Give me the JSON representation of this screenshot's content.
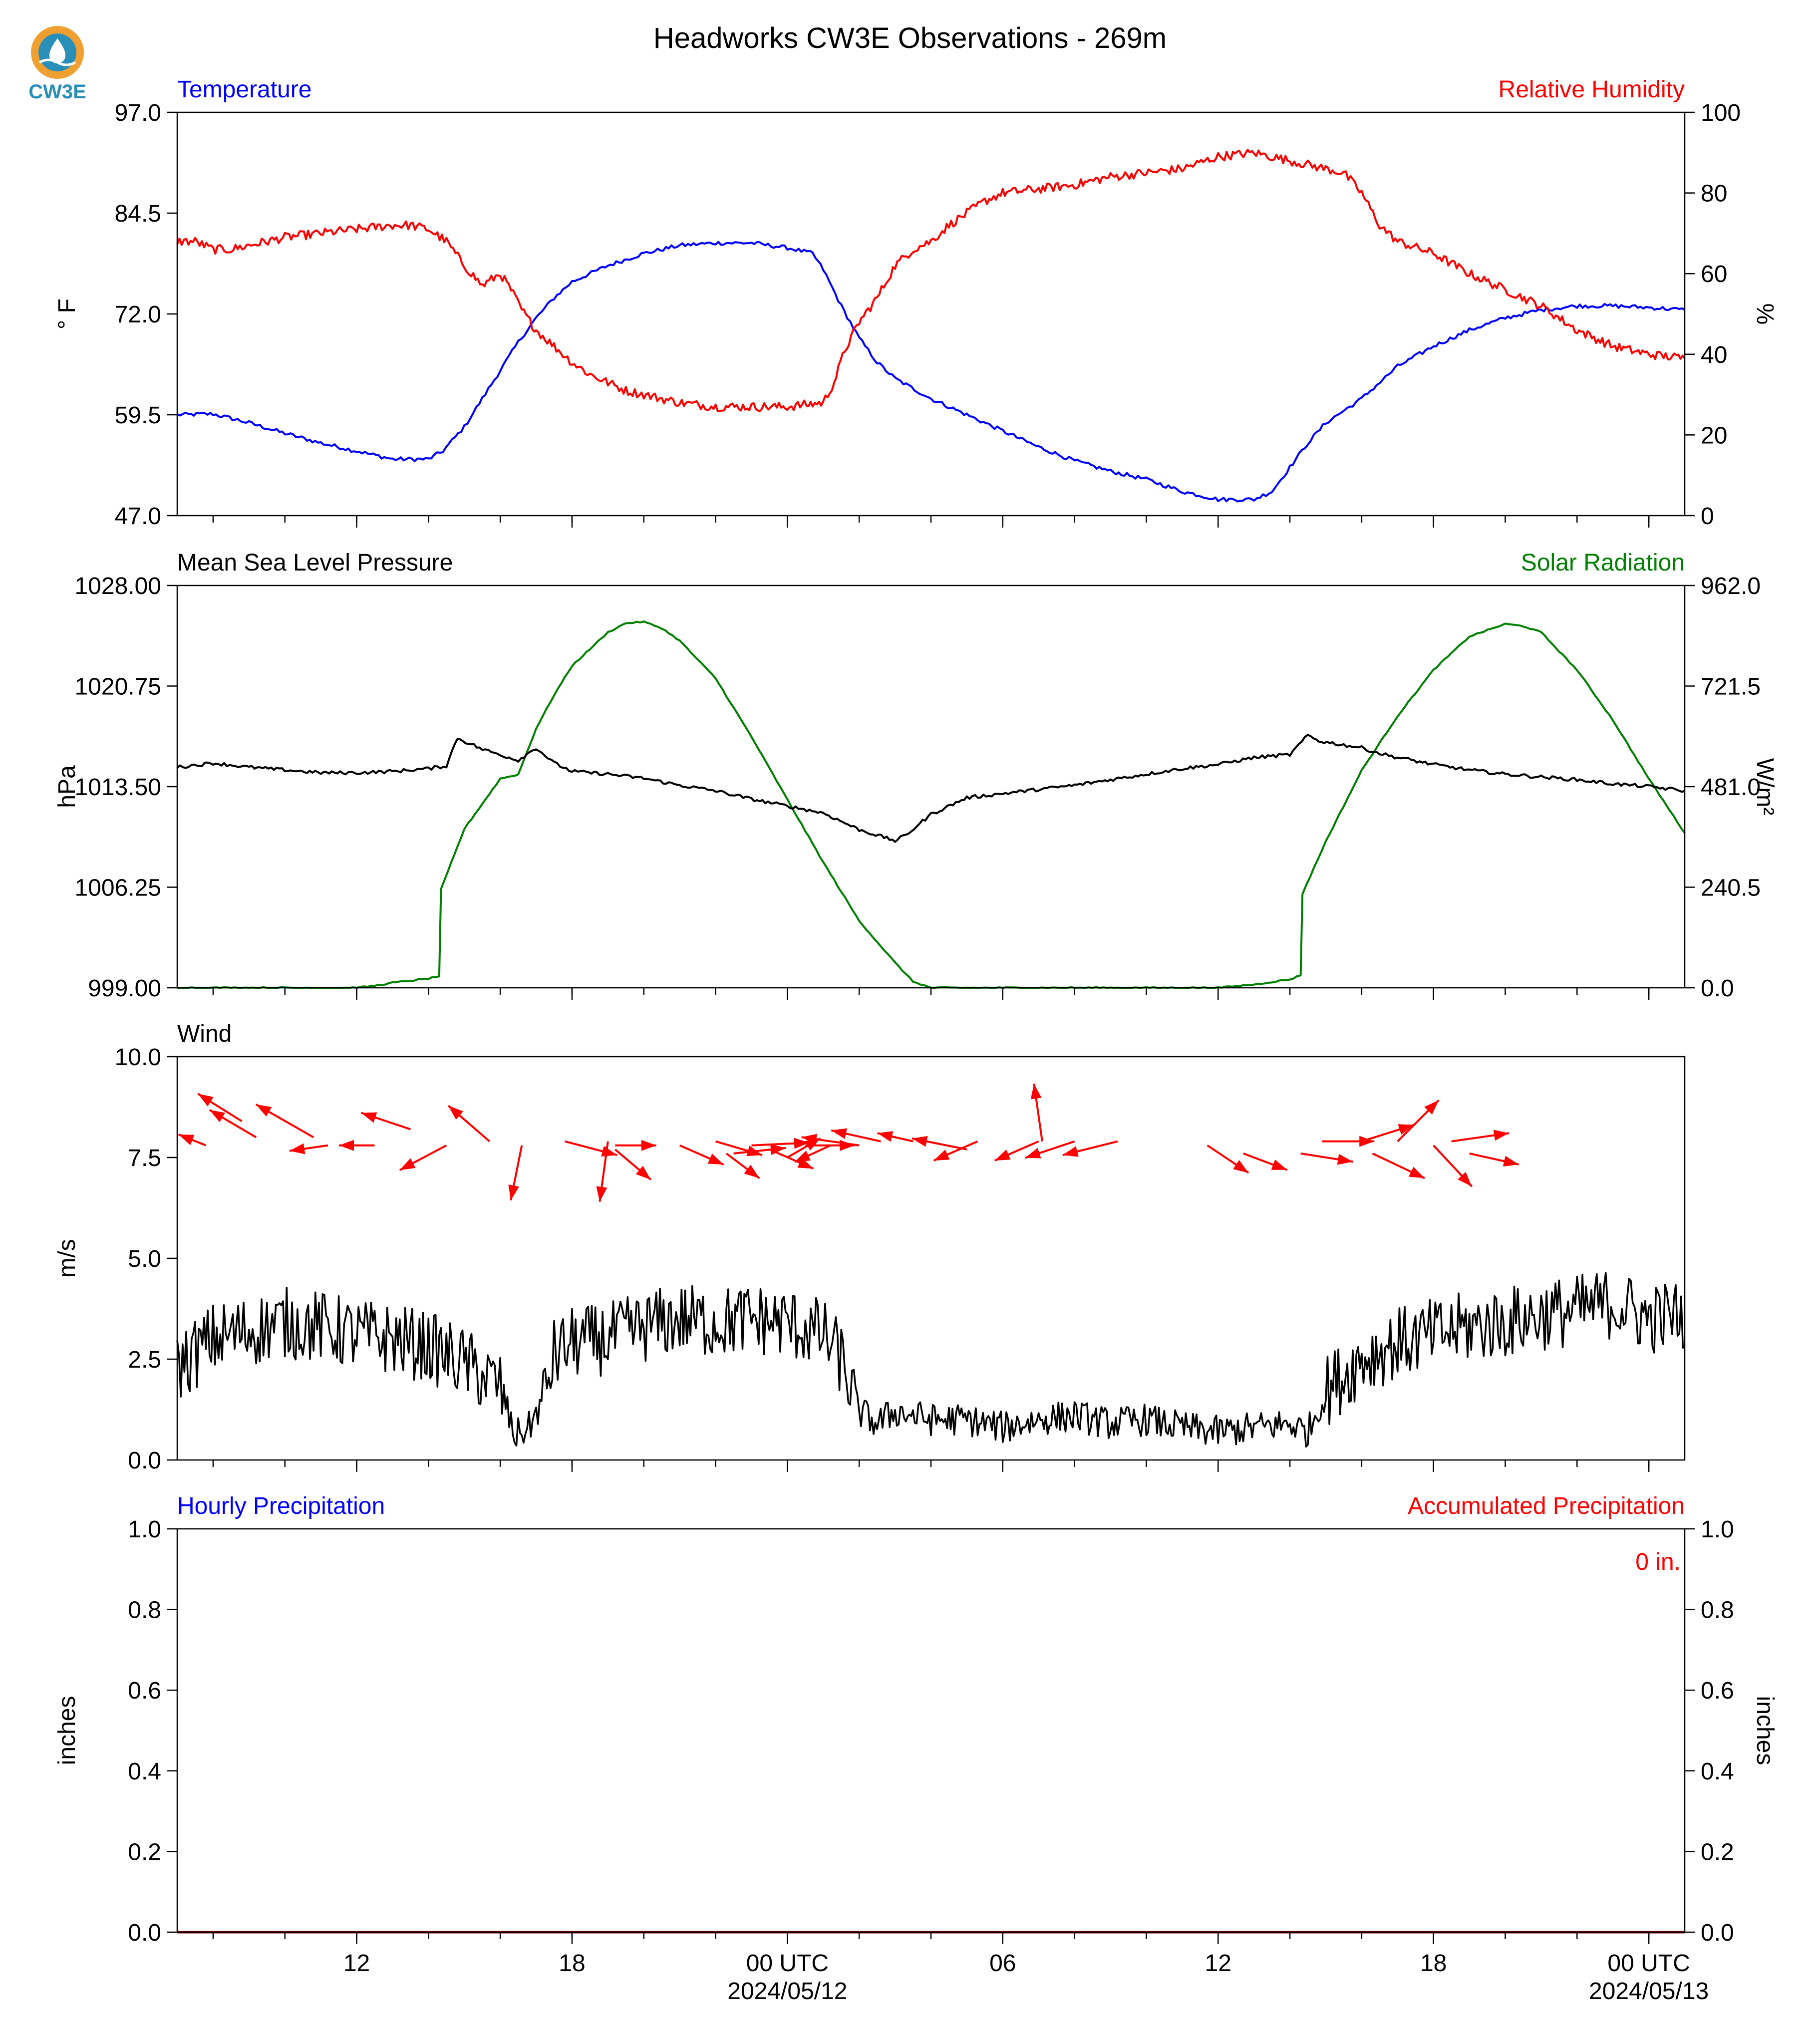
{
  "title": "Headworks CW3E Observations - 269m",
  "logo": {
    "text": "CW3E",
    "colors": {
      "sun": "#f0a030",
      "water": "#2a8fb8"
    }
  },
  "colors": {
    "blue": "#0000ff",
    "red": "#ff0000",
    "green": "#008000",
    "black": "#000000",
    "precip_line": "#8b0000"
  },
  "chart_data": [
    {
      "type": "line",
      "panel": "temperature-humidity",
      "x_unit": "hours since 2024/05/11 07 UTC",
      "xlim": [
        0,
        42
      ],
      "left": {
        "label": "Temperature",
        "ylabel": "° F",
        "ylim": [
          47.0,
          97.0
        ],
        "ticks": [
          "47.0",
          "59.5",
          "72.0",
          "84.5",
          "97.0"
        ],
        "series": [
          {
            "name": "Temperature",
            "color": "#0000ff",
            "x": [
              0,
              1,
              2,
              3,
              4,
              5,
              6,
              7,
              7.4,
              8,
              8.5,
              9,
              9.5,
              10,
              10.5,
              11,
              12,
              13,
              14,
              15,
              16,
              17,
              17.7,
              18,
              18.5,
              19,
              19.5,
              20,
              21,
              22,
              23,
              24,
              25,
              26,
              27,
              28,
              29,
              30,
              30.5,
              31,
              31.5,
              32,
              32.5,
              33,
              33.5,
              34,
              35,
              36,
              37,
              38,
              39,
              40,
              41,
              42
            ],
            "y": [
              59.5,
              59.6,
              58.5,
              57.2,
              56.0,
              55.0,
              54.0,
              54.0,
              55.0,
              58.0,
              61.5,
              65.0,
              68.5,
              71.5,
              74.0,
              76.0,
              78.0,
              79.5,
              80.5,
              80.8,
              80.8,
              80.2,
              79.5,
              77.5,
              73.0,
              69.0,
              66.0,
              64.0,
              61.5,
              59.5,
              57.5,
              55.5,
              53.8,
              52.5,
              51.5,
              50.0,
              49.0,
              49.0,
              50.0,
              53.0,
              56.0,
              58.5,
              60.0,
              61.5,
              63.5,
              65.5,
              68.0,
              70.0,
              71.5,
              72.5,
              73.0,
              73.0,
              72.8,
              72.5
            ]
          }
        ]
      },
      "right": {
        "label": "Relative Humidity",
        "ylabel": "%",
        "ylim": [
          0,
          100
        ],
        "ticks": [
          "0",
          "20",
          "40",
          "60",
          "80",
          "100"
        ],
        "series": [
          {
            "name": "Relative Humidity",
            "color": "#ff0000",
            "x": [
              0,
              0.5,
              1,
              1.5,
              2,
              3,
              4,
              5,
              6,
              6.5,
              7,
              7.5,
              8,
              8.5,
              9,
              9.3,
              9.6,
              10,
              10.5,
              11,
              11.5,
              12,
              12.5,
              13,
              13.5,
              14,
              15,
              16,
              17,
              18,
              18.3,
              18.6,
              19,
              19.5,
              20,
              20.5,
              21,
              21.5,
              22,
              22.5,
              23,
              24,
              25,
              26,
              27,
              28,
              29,
              30,
              30.5,
              31,
              31.5,
              32,
              32.5,
              33,
              33.5,
              34,
              35,
              36,
              37,
              38,
              39,
              40,
              41,
              42
            ],
            "y": [
              68,
              68,
              66,
              66,
              67,
              69,
              70,
              71,
              72,
              72,
              71,
              68,
              62,
              57,
              60,
              56,
              51,
              46,
              42,
              38,
              35,
              33,
              31,
              30,
              29,
              28,
              27,
              27,
              27,
              28,
              33,
              41,
              48,
              54,
              62,
              66,
              68,
              72,
              75,
              78,
              80,
              81,
              82,
              84,
              85,
              86,
              89,
              90,
              89,
              88,
              87,
              86,
              85,
              80,
              72,
              68,
              65,
              60,
              56,
              52,
              46,
              42,
              40,
              39
            ]
          }
        ]
      }
    },
    {
      "type": "line",
      "panel": "pressure-solar",
      "x_unit": "hours since 2024/05/11 07 UTC",
      "xlim": [
        0,
        42
      ],
      "left": {
        "label": "Mean Sea Level Pressure",
        "ylabel": "hPa",
        "ylim": [
          999.0,
          1028.0
        ],
        "ticks": [
          "999.00",
          "1006.25",
          "1013.50",
          "1020.75",
          "1028.00"
        ],
        "series": [
          {
            "name": "Mean Sea Level Pressure",
            "color": "#000000",
            "x": [
              0,
              1,
              2,
              3,
              4,
              5,
              6,
              7,
              7.5,
              7.8,
              8.5,
              9,
              9.5,
              10,
              10.5,
              11,
              12,
              13,
              14,
              15,
              16,
              17,
              18,
              19,
              20,
              20.3,
              21,
              22,
              23,
              24,
              25,
              26,
              27,
              28,
              29,
              30,
              31,
              31.5,
              31.8,
              32.5,
              33,
              33.5,
              34,
              35,
              36,
              37,
              38,
              39,
              40,
              41,
              42
            ],
            "y": [
              1014.9,
              1015.2,
              1014.9,
              1014.7,
              1014.5,
              1014.5,
              1014.6,
              1014.8,
              1015.0,
              1017.0,
              1016.2,
              1015.8,
              1015.4,
              1016.3,
              1015.2,
              1014.6,
              1014.4,
              1014.1,
              1013.6,
              1013.2,
              1012.6,
              1012.1,
              1011.6,
              1010.4,
              1009.6,
              1010.0,
              1011.5,
              1012.7,
              1013.0,
              1013.3,
              1013.6,
              1014.0,
              1014.4,
              1014.8,
              1015.1,
              1015.6,
              1015.8,
              1017.2,
              1016.8,
              1016.5,
              1016.3,
              1015.9,
              1015.6,
              1015.1,
              1014.7,
              1014.4,
              1014.2,
              1014.0,
              1013.7,
              1013.5,
              1013.2
            ]
          }
        ]
      },
      "right": {
        "label": "Solar Radiation",
        "ylabel": "W/m²",
        "ylim": [
          0.0,
          962.0
        ],
        "ticks": [
          "0.0",
          "240.5",
          "481.0",
          "721.5",
          "962.0"
        ],
        "series": [
          {
            "name": "Solar Radiation",
            "color": "#008000",
            "x": [
              0,
              5,
              5.5,
              6,
              7,
              7.3,
              7.35,
              8,
              9,
              9.5,
              10,
              10.5,
              11,
              12,
              12.5,
              13,
              13.5,
              14,
              15,
              16,
              17,
              18,
              19,
              20,
              20.5,
              21,
              22,
              23,
              26,
              28,
              29,
              30,
              31,
              31.3,
              31.35,
              32,
              33,
              34,
              35,
              36,
              37,
              37.5,
              38,
              39,
              40,
              41,
              42
            ],
            "y": [
              0,
              0,
              5,
              12,
              22,
              28,
              235,
              380,
              500,
              510,
              620,
              700,
              770,
              850,
              872,
              875,
              860,
              830,
              740,
              600,
              450,
              300,
              160,
              60,
              15,
              0,
              0,
              0,
              0,
              0,
              0,
              8,
              20,
              30,
              225,
              350,
              520,
              650,
              760,
              840,
              870,
              865,
              850,
              760,
              640,
              500,
              370
            ]
          }
        ]
      }
    },
    {
      "type": "line",
      "panel": "wind",
      "x_unit": "hours since 2024/05/11 07 UTC",
      "xlim": [
        0,
        42
      ],
      "left": {
        "label": "Wind",
        "ylabel": "m/s",
        "ylim": [
          0.0,
          10.0
        ],
        "ticks": [
          "0.0",
          "2.5",
          "5.0",
          "7.5",
          "10.0"
        ],
        "series": [
          {
            "name": "Wind speed",
            "color": "#000000",
            "x": [
              0,
              1,
              2,
              3,
              4,
              5,
              6,
              7,
              8,
              9,
              9.4,
              9.8,
              10.2,
              10.5,
              11,
              12,
              13,
              14,
              15,
              16,
              17,
              18,
              18.5,
              19,
              19.5,
              20,
              21,
              22,
              23,
              24,
              25,
              26,
              27,
              28,
              29,
              30,
              31,
              31.5,
              32,
              33,
              34,
              35,
              36,
              37,
              38,
              39,
              40,
              41,
              42
            ],
            "y": [
              2.3,
              3.0,
              3.2,
              3.4,
              3.3,
              3.1,
              3.0,
              2.8,
              2.4,
              1.8,
              0.6,
              0.8,
              1.5,
              2.6,
              2.9,
              3.0,
              3.3,
              3.5,
              3.4,
              3.5,
              3.4,
              3.1,
              2.5,
              1.2,
              0.9,
              1.2,
              1.0,
              1.0,
              0.8,
              1.0,
              1.1,
              0.9,
              1.0,
              0.8,
              0.7,
              0.8,
              0.9,
              0.7,
              1.7,
              2.5,
              2.9,
              3.1,
              3.3,
              3.4,
              3.6,
              3.7,
              3.9,
              3.5,
              3.6
            ]
          }
        ],
        "jitter_amplitude": 0.9,
        "calm_noise_amplitude": 0.4
      },
      "wind_vectors": [
        {
          "x": 0.8,
          "y": 7.8,
          "u": -1.0,
          "v": 0.4
        },
        {
          "x": 1.8,
          "y": 8.4,
          "u": -1.6,
          "v": 1.0
        },
        {
          "x": 2.2,
          "y": 8.0,
          "u": -1.7,
          "v": 1.0
        },
        {
          "x": 3.8,
          "y": 8.0,
          "u": -2.1,
          "v": 1.2
        },
        {
          "x": 4.2,
          "y": 7.8,
          "u": -1.4,
          "v": -0.2
        },
        {
          "x": 5.5,
          "y": 7.8,
          "u": -1.3,
          "v": 0.0
        },
        {
          "x": 6.5,
          "y": 8.2,
          "u": -1.8,
          "v": 0.6
        },
        {
          "x": 7.5,
          "y": 7.8,
          "u": -1.7,
          "v": -0.9
        },
        {
          "x": 8.7,
          "y": 7.9,
          "u": -1.5,
          "v": 1.3
        },
        {
          "x": 9.6,
          "y": 7.8,
          "u": -0.4,
          "v": -2.0
        },
        {
          "x": 10.8,
          "y": 7.9,
          "u": 1.9,
          "v": -0.5
        },
        {
          "x": 12.0,
          "y": 7.9,
          "u": -0.3,
          "v": -2.2
        },
        {
          "x": 12.2,
          "y": 7.8,
          "u": 1.5,
          "v": 0.0
        },
        {
          "x": 12.2,
          "y": 7.7,
          "u": 1.3,
          "v": -1.1
        },
        {
          "x": 14.0,
          "y": 7.8,
          "u": 1.6,
          "v": -0.7
        },
        {
          "x": 15.0,
          "y": 7.9,
          "u": 1.7,
          "v": -0.5
        },
        {
          "x": 15.3,
          "y": 7.6,
          "u": 1.2,
          "v": -0.9
        },
        {
          "x": 15.5,
          "y": 7.6,
          "u": 1.9,
          "v": 0.2
        },
        {
          "x": 16.0,
          "y": 7.8,
          "u": 2.1,
          "v": 0.1
        },
        {
          "x": 16.5,
          "y": 7.7,
          "u": 1.6,
          "v": -0.7
        },
        {
          "x": 17.0,
          "y": 7.5,
          "u": 1.2,
          "v": 0.7
        },
        {
          "x": 17.5,
          "y": 7.8,
          "u": 1.8,
          "v": 0.0
        },
        {
          "x": 18.2,
          "y": 7.8,
          "u": -1.3,
          "v": -0.6
        },
        {
          "x": 19.0,
          "y": 7.8,
          "u": -2.1,
          "v": 0.3
        },
        {
          "x": 19.6,
          "y": 7.9,
          "u": -1.8,
          "v": 0.4
        },
        {
          "x": 20.5,
          "y": 7.9,
          "u": -1.3,
          "v": 0.3
        },
        {
          "x": 22.0,
          "y": 7.7,
          "u": -2.0,
          "v": 0.4
        },
        {
          "x": 22.3,
          "y": 7.9,
          "u": -1.6,
          "v": -0.7
        },
        {
          "x": 24.0,
          "y": 7.9,
          "u": -1.6,
          "v": -0.7
        },
        {
          "x": 24.1,
          "y": 7.9,
          "u": -0.3,
          "v": 2.1
        },
        {
          "x": 25.0,
          "y": 7.9,
          "u": -1.8,
          "v": -0.6
        },
        {
          "x": 26.2,
          "y": 7.9,
          "u": -2.0,
          "v": -0.5
        },
        {
          "x": 28.7,
          "y": 7.8,
          "u": 1.5,
          "v": -1.0
        },
        {
          "x": 29.7,
          "y": 7.6,
          "u": 1.6,
          "v": -0.6
        },
        {
          "x": 31.3,
          "y": 7.6,
          "u": 1.9,
          "v": -0.3
        },
        {
          "x": 31.9,
          "y": 7.9,
          "u": 1.9,
          "v": 0.0
        },
        {
          "x": 33.0,
          "y": 7.9,
          "u": 1.9,
          "v": 0.6
        },
        {
          "x": 33.3,
          "y": 7.6,
          "u": 1.9,
          "v": -0.9
        },
        {
          "x": 34.0,
          "y": 7.9,
          "u": 1.5,
          "v": 1.5
        },
        {
          "x": 35.0,
          "y": 7.8,
          "u": 1.4,
          "v": -1.5
        },
        {
          "x": 35.5,
          "y": 7.9,
          "u": 2.1,
          "v": 0.3
        },
        {
          "x": 36.0,
          "y": 7.6,
          "u": 1.8,
          "v": -0.4
        }
      ]
    },
    {
      "type": "line",
      "panel": "precipitation",
      "x_unit": "hours since 2024/05/11 07 UTC",
      "xlim": [
        0,
        42
      ],
      "left": {
        "label": "Hourly Precipitation",
        "ylabel": "inches",
        "ylim": [
          0.0,
          1.0
        ],
        "ticks": [
          "0.0",
          "0.2",
          "0.4",
          "0.6",
          "0.8",
          "1.0"
        ],
        "series": [
          {
            "name": "Hourly Precipitation",
            "color": "#0000ff",
            "x": [
              0,
              42
            ],
            "y": [
              0,
              0
            ]
          }
        ]
      },
      "right": {
        "label": "Accumulated Precipitation",
        "ylabel": "inches",
        "ylim": [
          0.0,
          1.0
        ],
        "ticks": [
          "0.0",
          "0.2",
          "0.4",
          "0.6",
          "0.8",
          "1.0"
        ],
        "series": [
          {
            "name": "Accumulated Precipitation",
            "color": "#8b0000",
            "x": [
              0,
              42
            ],
            "y": [
              0,
              0
            ]
          }
        ],
        "annotation": "0 in."
      }
    }
  ],
  "x_axis": {
    "major_ticks": [
      {
        "x": 5,
        "label": "12",
        "sub": ""
      },
      {
        "x": 11,
        "label": "18",
        "sub": ""
      },
      {
        "x": 17,
        "label": "00 UTC",
        "sub": "2024/05/12"
      },
      {
        "x": 23,
        "label": "06",
        "sub": ""
      },
      {
        "x": 29,
        "label": "12",
        "sub": ""
      },
      {
        "x": 35,
        "label": "18",
        "sub": ""
      },
      {
        "x": 41,
        "label": "00 UTC",
        "sub": "2024/05/13"
      }
    ],
    "minor_ticks": [
      1,
      3,
      5,
      7,
      9,
      11,
      13,
      15,
      17,
      19,
      21,
      23,
      25,
      27,
      29,
      31,
      33,
      35,
      37,
      39,
      41
    ]
  }
}
